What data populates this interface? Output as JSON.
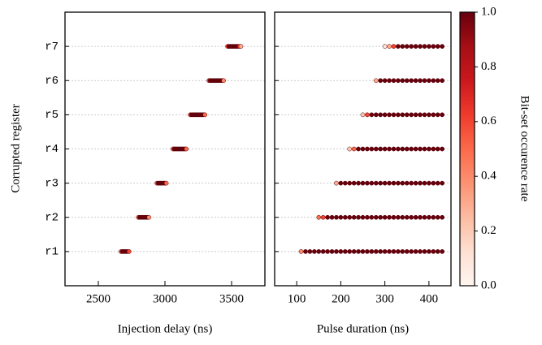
{
  "chart_data": [
    {
      "type": "scatter",
      "xlabel": "Injection delay (ns)",
      "ylabel": "Corrupted register",
      "xlim": [
        2250,
        3750
      ],
      "xticks": [
        2500,
        3000,
        3500
      ],
      "grid": true,
      "categories": [
        "r1",
        "r2",
        "r3",
        "r4",
        "r5",
        "r6",
        "r7"
      ],
      "points": [
        {
          "x": [
            2670,
            2680,
            2690,
            2700,
            2710,
            2720,
            2730
          ],
          "rates": [
            0.5,
            1,
            1,
            1,
            1,
            1,
            0.6
          ]
        },
        {
          "x": [
            2800,
            2810,
            2820,
            2830,
            2840,
            2850,
            2860,
            2870,
            2880
          ],
          "rates": [
            0.5,
            1,
            1,
            1,
            1,
            1,
            1,
            1,
            0.4
          ]
        },
        {
          "x": [
            2940,
            2950,
            2960,
            2970,
            2980,
            2990,
            3000,
            3010
          ],
          "rates": [
            0.6,
            1,
            1,
            1,
            1,
            1,
            1,
            0.5
          ]
        },
        {
          "x": [
            3060,
            3070,
            3080,
            3090,
            3100,
            3110,
            3120,
            3130,
            3140,
            3150,
            3160
          ],
          "rates": [
            0.5,
            1,
            1,
            1,
            1,
            1,
            1,
            1,
            1,
            1,
            0.5
          ]
        },
        {
          "x": [
            3190,
            3200,
            3210,
            3220,
            3230,
            3240,
            3250,
            3260,
            3270,
            3280,
            3290,
            3300
          ],
          "rates": [
            0.6,
            1,
            1,
            1,
            1,
            1,
            1,
            1,
            1,
            1,
            1,
            0.5
          ]
        },
        {
          "x": [
            3330,
            3340,
            3350,
            3360,
            3370,
            3380,
            3390,
            3400,
            3410,
            3420,
            3430,
            3440
          ],
          "rates": [
            0.6,
            1,
            1,
            1,
            1,
            1,
            1,
            1,
            1,
            1,
            1,
            0.4
          ]
        },
        {
          "x": [
            3470,
            3480,
            3490,
            3500,
            3510,
            3520,
            3530,
            3540,
            3550,
            3560,
            3570
          ],
          "rates": [
            0.6,
            1,
            1,
            1,
            1,
            1,
            1,
            1,
            1,
            0.6,
            0.3
          ]
        }
      ]
    },
    {
      "type": "scatter",
      "xlabel": "Pulse duration (ns)",
      "xlim": [
        50,
        450
      ],
      "xticks": [
        100,
        200,
        300,
        400
      ],
      "grid": true,
      "points": [
        {
          "x": [
            110,
            120,
            130,
            140,
            150,
            160,
            170,
            180,
            190,
            200,
            210,
            220,
            230,
            240,
            250,
            260,
            270,
            280,
            290,
            300,
            310,
            320,
            330,
            340,
            350,
            360,
            370,
            380,
            390,
            400,
            410,
            420,
            430
          ],
          "rates": [
            0.4,
            1,
            1,
            1,
            1,
            1,
            1,
            1,
            1,
            1,
            1,
            1,
            1,
            1,
            1,
            1,
            1,
            1,
            1,
            1,
            1,
            1,
            1,
            1,
            1,
            1,
            1,
            1,
            1,
            1,
            1,
            1,
            1
          ]
        },
        {
          "x": [
            150,
            160,
            170,
            180,
            190,
            200,
            210,
            220,
            230,
            240,
            250,
            260,
            270,
            280,
            290,
            300,
            310,
            320,
            330,
            340,
            350,
            360,
            370,
            380,
            390,
            400,
            410,
            420,
            430
          ],
          "rates": [
            0.5,
            0.6,
            1,
            1,
            1,
            1,
            1,
            1,
            1,
            1,
            1,
            1,
            1,
            1,
            1,
            1,
            1,
            1,
            1,
            1,
            1,
            1,
            1,
            1,
            1,
            1,
            1,
            1,
            1
          ]
        },
        {
          "x": [
            190,
            200,
            210,
            220,
            230,
            240,
            250,
            260,
            270,
            280,
            290,
            300,
            310,
            320,
            330,
            340,
            350,
            360,
            370,
            380,
            390,
            400,
            410,
            420,
            430
          ],
          "rates": [
            0.3,
            1,
            1,
            1,
            1,
            1,
            1,
            1,
            1,
            1,
            1,
            1,
            1,
            1,
            1,
            1,
            1,
            1,
            1,
            1,
            1,
            1,
            1,
            1,
            1
          ]
        },
        {
          "x": [
            220,
            230,
            240,
            250,
            260,
            270,
            280,
            290,
            300,
            310,
            320,
            330,
            340,
            350,
            360,
            370,
            380,
            390,
            400,
            410,
            420,
            430
          ],
          "rates": [
            0.2,
            0.5,
            1,
            1,
            1,
            1,
            1,
            1,
            1,
            1,
            1,
            1,
            1,
            1,
            1,
            1,
            1,
            1,
            1,
            1,
            1,
            1
          ]
        },
        {
          "x": [
            250,
            260,
            270,
            280,
            290,
            300,
            310,
            320,
            330,
            340,
            350,
            360,
            370,
            380,
            390,
            400,
            410,
            420,
            430
          ],
          "rates": [
            0.2,
            0.6,
            1,
            1,
            1,
            1,
            1,
            1,
            1,
            1,
            1,
            1,
            1,
            1,
            1,
            1,
            1,
            1,
            1
          ]
        },
        {
          "x": [
            280,
            290,
            300,
            310,
            320,
            330,
            340,
            350,
            360,
            370,
            380,
            390,
            400,
            410,
            420,
            430
          ],
          "rates": [
            0.3,
            1,
            1,
            1,
            1,
            1,
            1,
            1,
            1,
            1,
            1,
            1,
            1,
            1,
            1,
            1
          ]
        },
        {
          "x": [
            300,
            310,
            320,
            330,
            340,
            350,
            360,
            370,
            380,
            390,
            400,
            410,
            420,
            430
          ],
          "rates": [
            0.1,
            0.3,
            0.6,
            1,
            1,
            1,
            1,
            1,
            1,
            1,
            1,
            1,
            1,
            1
          ]
        }
      ],
      "colorbar": {
        "label": "Bit-set occurence rate",
        "lim": [
          0,
          1
        ],
        "ticks": [
          {
            "value": 0,
            "label": "0.0"
          },
          {
            "value": 0.2,
            "label": "0.2"
          },
          {
            "value": 0.4,
            "label": "0.4"
          },
          {
            "value": 0.6,
            "label": "0.6"
          },
          {
            "value": 0.8,
            "label": "0.8"
          },
          {
            "value": 1,
            "label": "1.0"
          }
        ],
        "colormap": [
          "#fff5f0",
          "#fee0d2",
          "#fcbba1",
          "#fc9272",
          "#fb6a4a",
          "#ef3b2c",
          "#cb181d",
          "#a50f15",
          "#67000d"
        ]
      }
    }
  ]
}
